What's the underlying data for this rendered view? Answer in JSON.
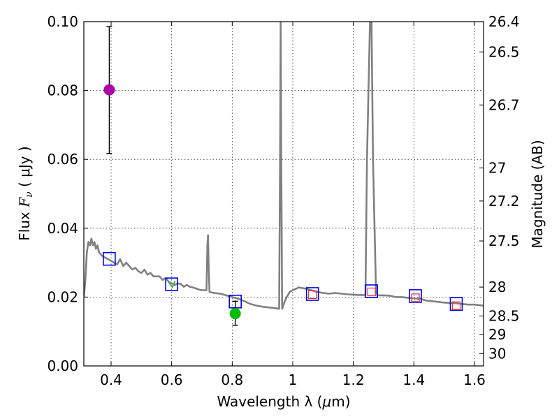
{
  "chart_data": {
    "type": "scatter",
    "xlabel": "Wavelength  λ (μm)",
    "ylabel": "Flux  F_ν  ( μJy )",
    "ylabel_parts": {
      "prefix": "Flux ",
      "symbol_main": "F",
      "symbol_sub": "ν",
      "unit": " ( μJy )"
    },
    "xlabel_parts": {
      "prefix": "Wavelength  λ (",
      "unit_symbol": "μ",
      "unit_rest": "m)"
    },
    "y2label": "Magnitude (AB)",
    "xlim": [
      0.31,
      1.63
    ],
    "ylim": [
      0.0,
      0.1
    ],
    "grid": true,
    "x_ticks": [
      0.4,
      0.6,
      0.8,
      1.0,
      1.2,
      1.4,
      1.6
    ],
    "x_tick_labels": [
      "0.4",
      "0.6",
      "0.8",
      "1",
      "1.2",
      "1.4",
      "1.6"
    ],
    "y_ticks": [
      0.0,
      0.02,
      0.04,
      0.06,
      0.08,
      0.1
    ],
    "y_tick_labels": [
      "0.00",
      "0.02",
      "0.04",
      "0.06",
      "0.08",
      "0.10"
    ],
    "magnitude_ticks": [
      {
        "label": "26.4",
        "flux": 0.1
      },
      {
        "label": "26.5",
        "flux": 0.0912
      },
      {
        "label": "26.7",
        "flux": 0.0758
      },
      {
        "label": "27",
        "flux": 0.0575
      },
      {
        "label": "27.2",
        "flux": 0.0479
      },
      {
        "label": "27.5",
        "flux": 0.0363
      },
      {
        "label": "28",
        "flux": 0.0229
      },
      {
        "label": "28.5",
        "flux": 0.0145
      },
      {
        "label": "29",
        "flux": 0.0091
      },
      {
        "label": "30",
        "flux": 0.0036
      }
    ],
    "series": [
      {
        "kind": "line",
        "color": "#808080",
        "x": [
          0.31,
          0.315,
          0.32,
          0.325,
          0.33,
          0.335,
          0.34,
          0.345,
          0.35,
          0.355,
          0.36,
          0.37,
          0.38,
          0.39,
          0.4,
          0.41,
          0.42,
          0.43,
          0.44,
          0.45,
          0.46,
          0.47,
          0.48,
          0.49,
          0.5,
          0.51,
          0.52,
          0.53,
          0.54,
          0.55,
          0.56,
          0.57,
          0.58,
          0.59,
          0.6,
          0.61,
          0.62,
          0.63,
          0.64,
          0.65,
          0.66,
          0.67,
          0.68,
          0.69,
          0.7,
          0.715,
          0.718,
          0.72,
          0.722,
          0.725,
          0.74,
          0.76,
          0.78,
          0.8,
          0.82,
          0.84,
          0.86,
          0.88,
          0.9,
          0.92,
          0.94,
          0.955,
          0.958,
          0.96,
          0.962,
          0.965,
          0.97,
          0.98,
          0.99,
          1.0,
          1.02,
          1.04,
          1.06,
          1.08,
          1.1,
          1.12,
          1.14,
          1.16,
          1.18,
          1.2,
          1.22,
          1.24,
          1.245,
          1.255,
          1.26,
          1.265,
          1.275,
          1.28,
          1.3,
          1.32,
          1.34,
          1.36,
          1.38,
          1.4,
          1.42,
          1.44,
          1.46,
          1.48,
          1.5,
          1.52,
          1.54,
          1.56,
          1.58,
          1.6,
          1.63
        ],
        "y": [
          0.02,
          0.025,
          0.033,
          0.036,
          0.035,
          0.037,
          0.035,
          0.036,
          0.034,
          0.035,
          0.033,
          0.032,
          0.0315,
          0.031,
          0.0305,
          0.03,
          0.0295,
          0.031,
          0.029,
          0.03,
          0.029,
          0.028,
          0.0285,
          0.0275,
          0.027,
          0.028,
          0.0265,
          0.027,
          0.026,
          0.026,
          0.026,
          0.025,
          0.0255,
          0.0245,
          0.024,
          0.0235,
          0.024,
          0.0238,
          0.023,
          0.0235,
          0.023,
          0.0228,
          0.0225,
          0.0222,
          0.022,
          0.022,
          0.035,
          0.038,
          0.03,
          0.0215,
          0.0212,
          0.021,
          0.0205,
          0.02,
          0.0195,
          0.0188,
          0.018,
          0.0175,
          0.0172,
          0.017,
          0.0168,
          0.0166,
          0.06,
          0.1,
          0.06,
          0.0166,
          0.018,
          0.02,
          0.0215,
          0.022,
          0.0228,
          0.0225,
          0.022,
          0.0215,
          0.0212,
          0.021,
          0.0212,
          0.021,
          0.0208,
          0.0207,
          0.0206,
          0.0206,
          0.06,
          0.1,
          0.1,
          0.06,
          0.021,
          0.0205,
          0.0205,
          0.0204,
          0.02,
          0.02,
          0.0198,
          0.0196,
          0.0195,
          0.019,
          0.0188,
          0.0186,
          0.0184,
          0.0183,
          0.0182,
          0.018,
          0.0178,
          0.0178,
          0.0175
        ]
      },
      {
        "kind": "open-square-blue",
        "color": "#0000ee",
        "x": [
          0.394,
          0.6,
          0.81,
          1.065,
          1.26,
          1.405,
          1.54
        ],
        "y": [
          0.0311,
          0.0237,
          0.0187,
          0.0209,
          0.0217,
          0.0203,
          0.018
        ]
      },
      {
        "kind": "open-square-red",
        "color": "#ee3030",
        "x": [
          1.065,
          1.26,
          1.405,
          1.54
        ],
        "y": [
          0.0207,
          0.0215,
          0.0198,
          0.0175
        ]
      },
      {
        "kind": "green-marker-in-square",
        "color": "#4caf50",
        "x": [
          0.6
        ],
        "y": [
          0.0237
        ]
      },
      {
        "kind": "errorbar-point",
        "color": "#aa00aa",
        "x": [
          0.394
        ],
        "y": [
          0.0802
        ],
        "yerr_low": [
          0.0617
        ],
        "yerr_high": [
          0.0986
        ]
      },
      {
        "kind": "errorbar-point",
        "color": "#00bb00",
        "x": [
          0.81
        ],
        "y": [
          0.0152
        ],
        "yerr_low": [
          0.0118
        ],
        "yerr_high": [
          0.0188
        ]
      }
    ]
  }
}
